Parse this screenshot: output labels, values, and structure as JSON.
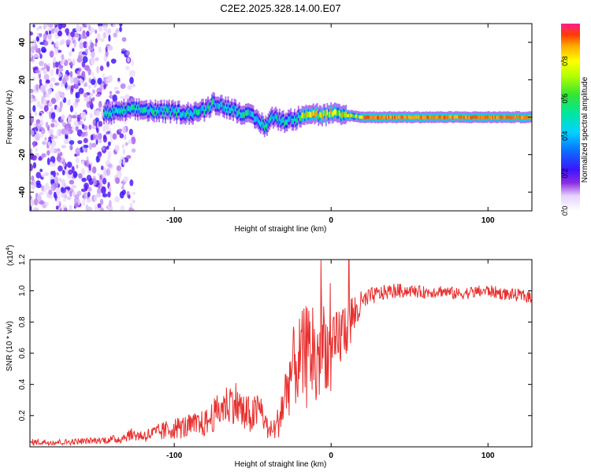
{
  "title": "C2E2.2025.328.14.00.E07",
  "chart_data": [
    {
      "type": "heatmap",
      "xlabel": "Height of straight line (km)",
      "ylabel": "Frequency (Hz)",
      "xlim": [
        -192,
        128
      ],
      "ylim": [
        -50,
        50
      ],
      "xticks": [
        -100,
        0,
        100
      ],
      "yticks": [
        -40,
        -20,
        0,
        20,
        40
      ],
      "ridge": {
        "description": "main spectral ridge frequency vs height",
        "x": [
          -140,
          -130,
          -120,
          -110,
          -100,
          -90,
          -80,
          -75,
          -70,
          -65,
          -60,
          -55,
          -50,
          -45,
          -42,
          -38,
          -30,
          -22,
          -18,
          -12,
          -5,
          0,
          5,
          10,
          20,
          40,
          60,
          80,
          100,
          128
        ],
        "y": [
          2,
          4,
          4,
          3,
          3,
          2,
          4,
          8,
          6,
          5,
          3,
          2,
          0,
          -3,
          -5,
          0,
          -2,
          -1,
          2,
          2,
          1,
          2,
          1,
          1,
          0,
          0,
          0,
          0,
          0,
          0
        ]
      },
      "colorbar": {
        "label": "Normalized spectral amplitude",
        "range": [
          0.0,
          1.0
        ],
        "ticks": [
          0.0,
          0.2,
          0.4,
          0.6,
          0.8
        ],
        "tick_labels": [
          "0.0",
          "0.2",
          "0.4",
          "0.6",
          "0.8"
        ]
      }
    },
    {
      "type": "line",
      "xlabel": "Height of straight line (km)",
      "ylabel": "SNR (10 * v/v)",
      "y_multiplier": "(x10",
      "y_multiplier_exp": "4",
      "xlim": [
        -192,
        128
      ],
      "ylim": [
        0.0,
        1.2
      ],
      "xticks": [
        -100,
        0,
        100
      ],
      "yticks": [
        0.2,
        0.4,
        0.6,
        0.8,
        1.0,
        1.2
      ],
      "ytick_labels": [
        "0.2",
        "0.4",
        "0.6",
        "0.8",
        "1.0",
        "1.2"
      ],
      "series": [
        {
          "name": "SNR",
          "color": "#e8302e",
          "x": [
            -192,
            -170,
            -150,
            -135,
            -128,
            -120,
            -110,
            -100,
            -90,
            -80,
            -70,
            -62,
            -55,
            -50,
            -45,
            -40,
            -35,
            -30,
            -25,
            -20,
            -15,
            -12,
            -10,
            -5,
            0,
            5,
            10,
            15,
            20,
            25,
            30,
            40,
            50,
            60,
            70,
            80,
            90,
            100,
            110,
            120,
            128
          ],
          "y": [
            0.03,
            0.03,
            0.04,
            0.05,
            0.08,
            0.07,
            0.09,
            0.12,
            0.13,
            0.15,
            0.25,
            0.3,
            0.2,
            0.2,
            0.25,
            0.1,
            0.12,
            0.3,
            0.5,
            0.55,
            0.58,
            0.65,
            0.5,
            0.7,
            0.55,
            0.7,
            0.78,
            0.85,
            0.92,
            0.96,
            0.98,
            1.0,
            1.0,
            0.99,
            1.0,
            0.98,
            0.99,
            1.0,
            0.98,
            0.97,
            0.96
          ],
          "noise": [
            0.02,
            0.02,
            0.02,
            0.03,
            0.04,
            0.04,
            0.06,
            0.07,
            0.08,
            0.09,
            0.12,
            0.15,
            0.14,
            0.12,
            0.12,
            0.06,
            0.08,
            0.2,
            0.25,
            0.3,
            0.35,
            0.4,
            0.35,
            0.3,
            0.25,
            0.22,
            0.2,
            0.15,
            0.08,
            0.06,
            0.05,
            0.05,
            0.04,
            0.04,
            0.04,
            0.04,
            0.04,
            0.04,
            0.04,
            0.04,
            0.04
          ]
        }
      ]
    }
  ]
}
